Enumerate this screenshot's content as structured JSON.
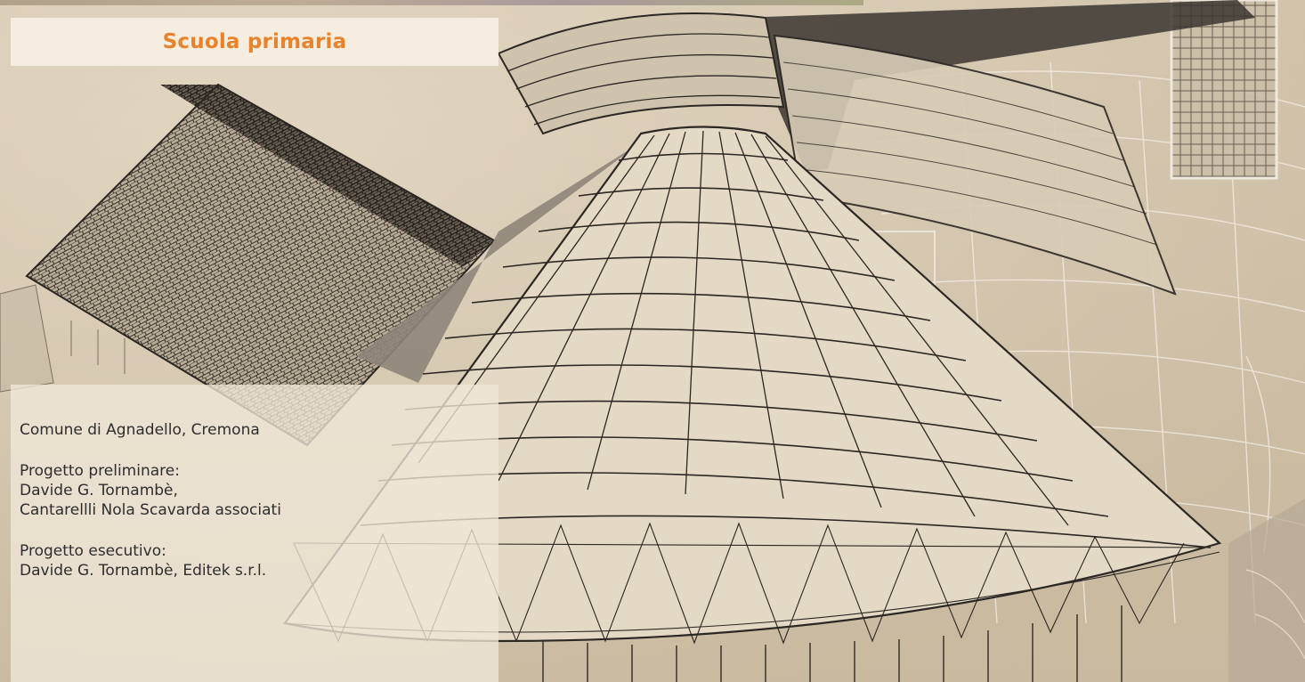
{
  "header": {
    "title": "Scuola primaria",
    "accent_color": "#e8822b"
  },
  "info": {
    "location": "Comune di Agnadello, Cremona",
    "preliminary": {
      "label": "Progetto preliminare:",
      "line1": "Davide G. Tornambè,",
      "line2": "Cantarellli Nola Scavarda associati"
    },
    "executive": {
      "label": "Progetto esecutivo:",
      "line1": "Davide G. Tornambè, Editek s.r.l."
    }
  }
}
